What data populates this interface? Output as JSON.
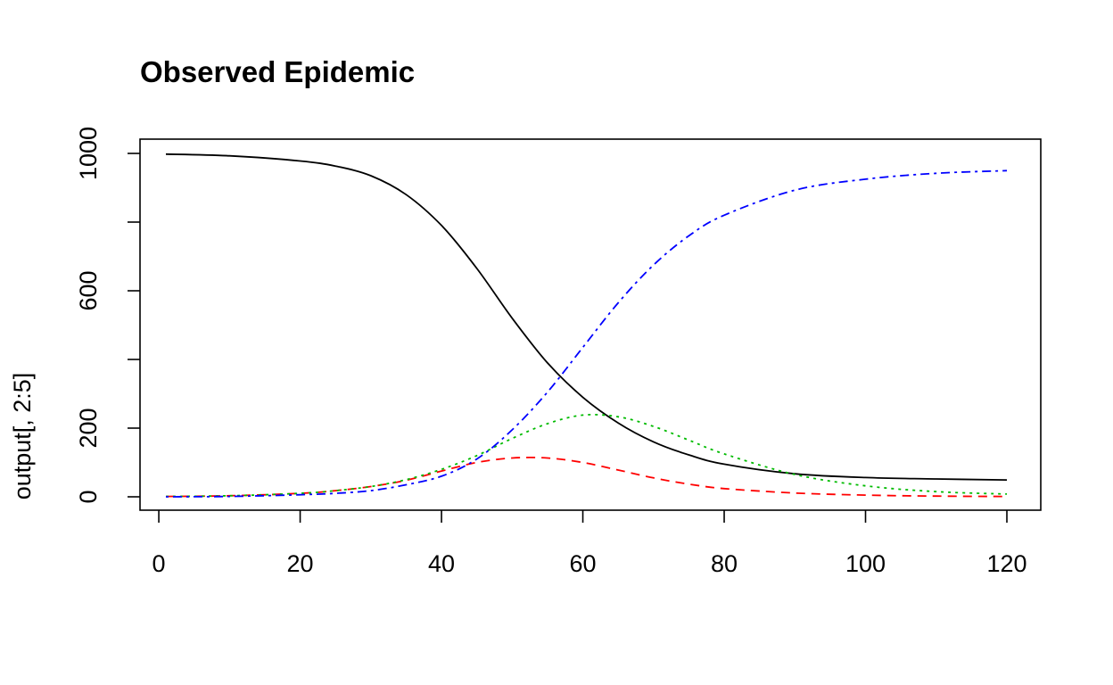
{
  "chart_data": {
    "type": "line",
    "title": "Observed Epidemic",
    "xlabel": "",
    "ylabel": "output[, 2:5]",
    "xlim": [
      1,
      120
    ],
    "ylim": [
      0,
      1000
    ],
    "x_ticks": [
      "0",
      "20",
      "40",
      "60",
      "80",
      "100",
      "120"
    ],
    "y_ticks": [
      "0",
      "200",
      "400",
      "600",
      "800",
      "1000"
    ],
    "y_tick_labels": [
      "0",
      "200",
      "",
      "600",
      "",
      "1000"
    ],
    "grid": false,
    "legend": "none",
    "x": [
      1,
      10,
      20,
      25,
      30,
      35,
      40,
      45,
      50,
      55,
      60,
      65,
      70,
      75,
      80,
      90,
      100,
      110,
      120
    ],
    "series": [
      {
        "color": "#000000",
        "dash": "solid",
        "values": [
          998,
          993,
          978,
          963,
          935,
          880,
          790,
          665,
          520,
          390,
          290,
          215,
          160,
          122,
          95,
          67,
          56,
          52,
          49
        ]
      },
      {
        "color": "#ff0000",
        "dash": "dashed",
        "values": [
          1,
          3,
          10,
          18,
          30,
          48,
          75,
          100,
          113,
          113,
          100,
          78,
          55,
          37,
          24,
          11,
          5,
          2,
          1
        ]
      },
      {
        "color": "#00bb00",
        "dash": "dotted",
        "values": [
          1,
          3,
          10,
          18,
          30,
          50,
          80,
          120,
          170,
          213,
          238,
          233,
          205,
          165,
          125,
          65,
          32,
          15,
          8
        ]
      },
      {
        "color": "#0000ff",
        "dash": "dotdash",
        "values": [
          0,
          1,
          6,
          10,
          18,
          35,
          60,
          110,
          195,
          305,
          435,
          565,
          675,
          760,
          820,
          893,
          925,
          942,
          950
        ]
      }
    ]
  }
}
